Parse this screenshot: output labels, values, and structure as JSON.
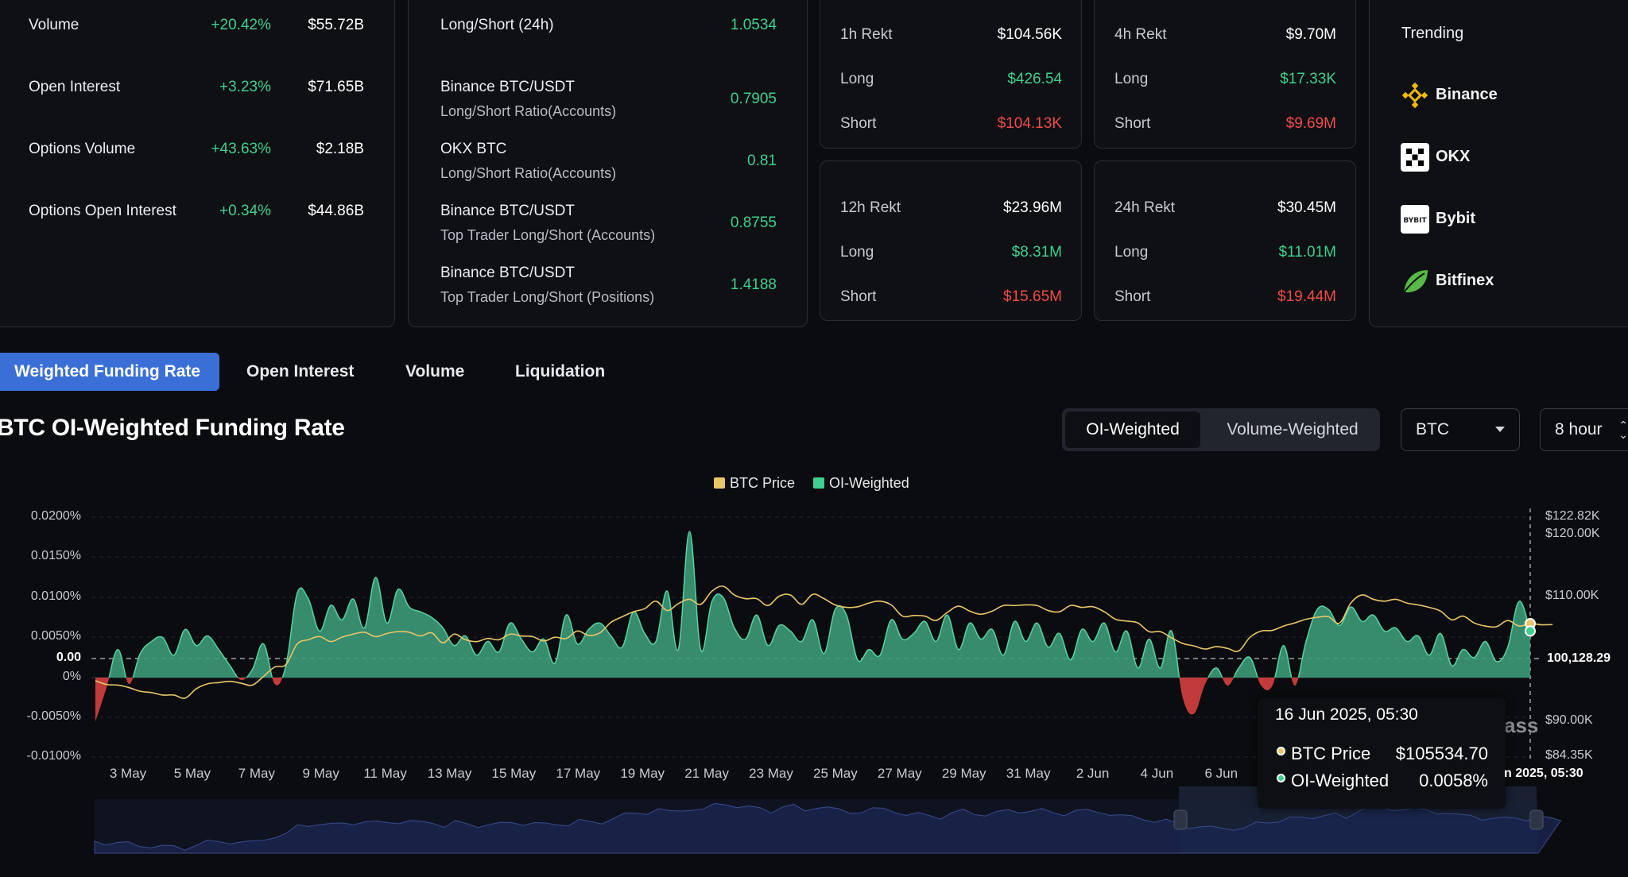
{
  "market": {
    "rows": [
      {
        "label": "Volume",
        "change": "+20.42%",
        "value": "$55.72B"
      },
      {
        "label": "Open Interest",
        "change": "+3.23%",
        "value": "$71.65B"
      },
      {
        "label": "Options Volume",
        "change": "+43.63%",
        "value": "$2.18B"
      },
      {
        "label": "Options Open Interest",
        "change": "+0.34%",
        "value": "$44.86B"
      }
    ]
  },
  "ratios": {
    "rows": [
      {
        "label": "Long/Short (24h)",
        "sub": "",
        "value": "1.0534"
      },
      {
        "label": "Binance BTC/USDT",
        "sub": "Long/Short Ratio(Accounts)",
        "value": "0.7905"
      },
      {
        "label": "OKX BTC",
        "sub": "Long/Short Ratio(Accounts)",
        "value": "0.81"
      },
      {
        "label": "Binance BTC/USDT",
        "sub": "Top Trader Long/Short (Accounts)",
        "value": "0.8755"
      },
      {
        "label": "Binance BTC/USDT",
        "sub": "Top Trader Long/Short (Positions)",
        "value": "1.4188"
      }
    ]
  },
  "rekt": [
    {
      "title": "1h Rekt",
      "total": "$104.56K",
      "long_label": "Long",
      "long": "$426.54",
      "short_label": "Short",
      "short": "$104.13K"
    },
    {
      "title": "4h Rekt",
      "total": "$9.70M",
      "long_label": "Long",
      "long": "$17.33K",
      "short_label": "Short",
      "short": "$9.69M"
    },
    {
      "title": "12h Rekt",
      "total": "$23.96M",
      "long_label": "Long",
      "long": "$8.31M",
      "short_label": "Short",
      "short": "$15.65M"
    },
    {
      "title": "24h Rekt",
      "total": "$30.45M",
      "long_label": "Long",
      "long": "$11.01M",
      "short_label": "Short",
      "short": "$19.44M"
    }
  ],
  "trending": {
    "title": "Trending",
    "items": [
      {
        "name": "Binance",
        "icon": "binance-icon",
        "color": "#f0b90b"
      },
      {
        "name": "OKX",
        "icon": "okx-icon",
        "color": "#ffffff"
      },
      {
        "name": "Bybit",
        "icon": "bybit-icon",
        "color": "#ffffff"
      },
      {
        "name": "Bitfinex",
        "icon": "bitfinex-icon",
        "color": "#58b947"
      }
    ]
  },
  "tabs": [
    {
      "label": "Weighted Funding Rate",
      "active": true
    },
    {
      "label": "Open Interest",
      "active": false
    },
    {
      "label": "Volume",
      "active": false
    },
    {
      "label": "Liquidation",
      "active": false
    }
  ],
  "chart_header": {
    "title": "BTC OI-Weighted Funding Rate",
    "seg": [
      "OI-Weighted",
      "Volume-Weighted"
    ],
    "coin": "BTC",
    "interval": "8 hour"
  },
  "tooltip": {
    "date": "16 Jun 2025, 05:30",
    "price_label": "BTC Price",
    "price": "$105534.70",
    "oi_label": "OI-Weighted",
    "oi": "0.0058%",
    "cross_x": "n 2025, 05:30",
    "cross_y": "100,128.29"
  },
  "watermark": "ass",
  "colors": {
    "accent": "#3a6fd8",
    "green": "#3fcf8e",
    "red": "#f14b4b",
    "price": "#e8c66a"
  },
  "chart_data": {
    "type": "area",
    "legend": [
      {
        "name": "BTC Price",
        "color": "#e8c66a"
      },
      {
        "name": "OI-Weighted",
        "color": "#3fcf8e"
      }
    ],
    "y_left_ticks": [
      "0.0200%",
      "0.0150%",
      "0.0100%",
      "0.0050%",
      "0.00",
      "0%",
      "-0.0050%",
      "-0.0100%"
    ],
    "y_right_ticks": [
      "$122.82K",
      "$120.00K",
      "$110.00K",
      "$90.00K",
      "$84.35K"
    ],
    "x_ticks": [
      "3 May",
      "5 May",
      "7 May",
      "9 May",
      "11 May",
      "13 May",
      "15 May",
      "17 May",
      "19 May",
      "21 May",
      "23 May",
      "25 May",
      "27 May",
      "29 May",
      "31 May",
      "2 Jun",
      "4 Jun",
      "6 Jun"
    ],
    "ylim": [
      -0.01,
      0.02
    ],
    "price_ylim": [
      84350,
      122820
    ],
    "series": [
      {
        "name": "OI-Weighted",
        "values": [
          -0.0055,
          -0.0012,
          0.0035,
          -0.0008,
          0.003,
          0.0045,
          0.005,
          0.0028,
          0.006,
          0.004,
          0.0052,
          0.0035,
          0.0015,
          -0.0003,
          0.001,
          0.0042,
          -0.0008,
          0.0015,
          0.0105,
          0.0098,
          0.0058,
          0.009,
          0.0072,
          0.0098,
          0.0062,
          0.0125,
          0.0068,
          0.011,
          0.0088,
          0.0082,
          0.0075,
          0.0062,
          0.004,
          0.0052,
          0.0028,
          0.0045,
          0.0032,
          0.0068,
          0.0048,
          0.0032,
          0.0048,
          0.0018,
          0.0078,
          0.0042,
          0.006,
          0.0068,
          0.0052,
          0.0038,
          0.0082,
          0.0055,
          0.0045,
          0.0108,
          0.0035,
          0.0182,
          0.0035,
          0.0095,
          0.01,
          0.0062,
          0.0048,
          0.0078,
          0.004,
          0.0065,
          0.0058,
          0.0045,
          0.0072,
          0.003,
          0.0085,
          0.0078,
          0.0022,
          0.0035,
          0.0028,
          0.0072,
          0.0048,
          0.0055,
          0.007,
          0.0045,
          0.0078,
          0.0035,
          0.0068,
          0.0048,
          0.006,
          0.0028,
          0.007,
          0.0045,
          0.0068,
          0.0038,
          0.0055,
          0.0022,
          0.006,
          0.0045,
          0.0068,
          0.0032,
          0.0058,
          0.0012,
          0.0048,
          0.0012,
          0.0058,
          -0.0025,
          -0.0045,
          -0.0008,
          0.0012,
          -0.001,
          0.0012,
          0.0025,
          -0.001,
          -0.001,
          0.004,
          -0.001,
          0.0045,
          0.0085,
          0.0085,
          0.0065,
          0.0088,
          0.007,
          0.0078,
          0.0058,
          0.0062,
          0.0045,
          0.0052,
          0.0028,
          0.0055,
          0.0015,
          0.0035,
          0.0025,
          0.0045,
          0.002,
          0.0038,
          0.0095,
          0.0058
        ]
      },
      {
        "name": "BTC Price",
        "values": [
          96500,
          95900,
          95800,
          95400,
          94800,
          94600,
          94200,
          94200,
          93700,
          95200,
          96000,
          96200,
          96400,
          96100,
          95800,
          97200,
          98700,
          99100,
          102400,
          103100,
          103600,
          102800,
          103500,
          104000,
          104300,
          103600,
          104100,
          104400,
          104300,
          103700,
          104200,
          102600,
          104000,
          103100,
          102800,
          103300,
          103100,
          104000,
          103700,
          103600,
          102900,
          103500,
          103300,
          104500,
          103800,
          104200,
          105900,
          106800,
          107600,
          108100,
          109300,
          107800,
          108900,
          109600,
          108800,
          110900,
          111700,
          110300,
          109700,
          109700,
          108600,
          110100,
          110300,
          108800,
          110400,
          109700,
          108700,
          108300,
          108400,
          109000,
          109300,
          108700,
          106900,
          107000,
          106900,
          106200,
          107500,
          108500,
          107700,
          107200,
          107700,
          108600,
          108600,
          108700,
          108600,
          107800,
          107600,
          108600,
          108300,
          108400,
          107600,
          106400,
          106100,
          105800,
          104400,
          104400,
          103400,
          102500,
          102100,
          101600,
          102000,
          101700,
          101300,
          103500,
          104500,
          104600,
          105300,
          105800,
          106400,
          106700,
          106800,
          105800,
          109000,
          110300,
          109600,
          109300,
          109600,
          109000,
          108700,
          108300,
          107700,
          106300,
          106900,
          105800,
          105300,
          105200,
          106200,
          105300,
          105700,
          105500,
          105534.7
        ]
      }
    ]
  }
}
